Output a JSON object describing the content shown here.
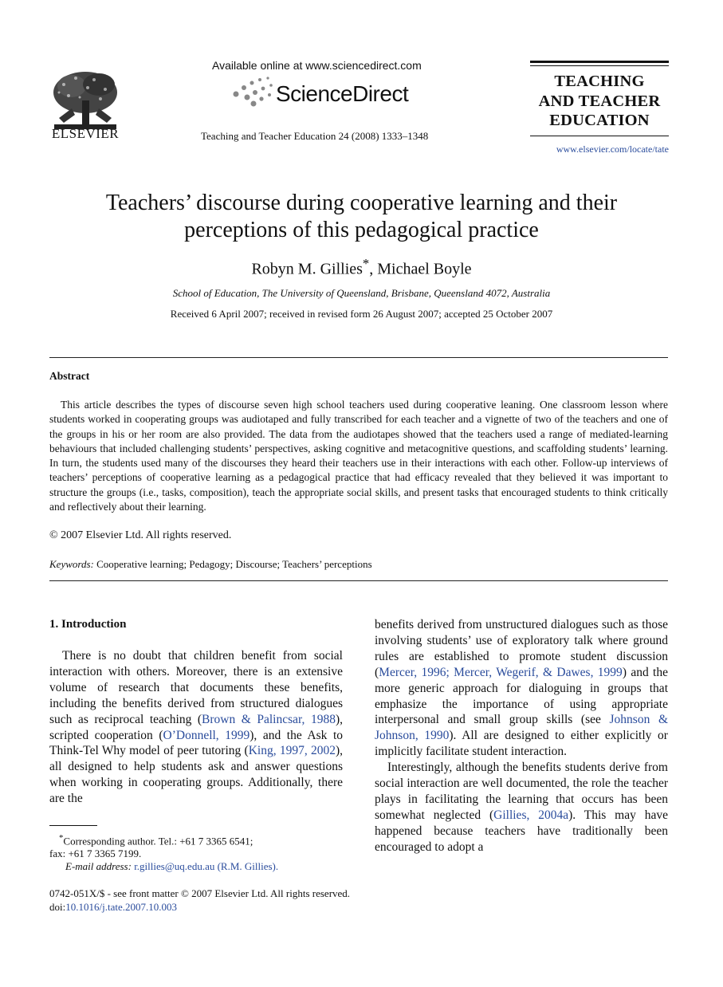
{
  "header": {
    "publisher": "ELSEVIER",
    "available_online": "Available online at www.sciencedirect.com",
    "brand": "ScienceDirect",
    "citation": "Teaching and Teacher Education 24 (2008) 1333–1348",
    "journal_lines": [
      "TEACHING",
      "AND TEACHER",
      "EDUCATION"
    ],
    "journal_url": "www.elsevier.com/locate/tate"
  },
  "article": {
    "title_line1": "Teachers’ discourse during cooperative learning and their",
    "title_line2": "perceptions of this pedagogical practice",
    "author1": "Robyn M. Gillies",
    "author1_mark": "*",
    "author2": ", Michael Boyle",
    "affiliation": "School of Education, The University of Queensland, Brisbane, Queensland 4072, Australia",
    "dates": "Received 6 April 2007; received in revised form 26 August 2007; accepted 25 October 2007"
  },
  "abstract": {
    "heading": "Abstract",
    "text": "This article describes the types of discourse seven high school teachers used during cooperative leaning. One classroom lesson where students worked in cooperating groups was audiotaped and fully transcribed for each teacher and a vignette of two of the teachers and one of the groups in his or her room are also provided. The data from the audiotapes showed that the teachers used a range of mediated-learning behaviours that included challenging students’ perspectives, asking cognitive and metacognitive questions, and scaffolding students’ learning. In turn, the students used many of the discourses they heard their teachers use in their interactions with each other. Follow-up interviews of teachers’ perceptions of cooperative learning as a pedagogical practice that had efficacy revealed that they believed it was important to structure the groups (i.e., tasks, composition), teach the appropriate social skills, and present tasks that encouraged students to think critically and reflectively about their learning.",
    "copyright": "© 2007 Elsevier Ltd. All rights reserved."
  },
  "keywords": {
    "label": "Keywords:",
    "text": " Cooperative learning; Pedagogy; Discourse; Teachers’ perceptions"
  },
  "intro": {
    "heading": "1.  Introduction",
    "left_p1_a": "There is no doubt that children benefit from social interaction with others. Moreover, there is an extensive volume of research that documents these benefits, including the benefits derived from structured dialogues such as reciprocal teaching (",
    "ref_brown": "Brown & Palincsar, 1988",
    "left_p1_b": "), scripted cooperation (",
    "ref_odonnell": "O’Donnell, 1999",
    "left_p1_c": "), and the Ask to Think-Tel Why model of peer tutoring (",
    "ref_king": "King, 1997, 2002",
    "left_p1_d": "), all designed to help students ask and answer questions when working in cooperating groups. Additionally, there are the",
    "right_p1_a": "benefits derived from unstructured dialogues such as those involving students’ use of exploratory talk where ground rules are established to promote student discussion (",
    "ref_mercer": "Mercer, 1996; Mercer, Wegerif, & Dawes, 1999",
    "right_p1_b": ") and the more generic approach for dialoguing in groups that emphasize the importance of using appropriate interpersonal and small group skills (see ",
    "ref_johnson": "Johnson & Johnson, 1990",
    "right_p1_c": "). All are designed to either explicitly or implicitly facilitate student interaction.",
    "right_p2_a": "Interestingly, although the benefits students derive from social interaction are well documented, the role the teacher plays in facilitating the learning that occurs has been somewhat neglected (",
    "ref_gillies": "Gillies, 2004a",
    "right_p2_b": "). This may have happened because teachers have traditionally been encouraged to adopt a"
  },
  "footnote": {
    "mark": "*",
    "line1": "Corresponding author. Tel.:  +61 7 3365 6541;",
    "line2": "fax:  +61 7 3365 7199.",
    "email_label": "E-mail address:",
    "email": " r.gillies@uq.edu.au (R.M. Gillies)."
  },
  "front_matter": {
    "issn": "0742-051X/$ - see front matter © 2007 Elsevier Ltd. All rights reserved.",
    "doi_label": "doi:",
    "doi": "10.1016/j.tate.2007.10.003"
  },
  "colors": {
    "link": "#2a4c9c"
  }
}
